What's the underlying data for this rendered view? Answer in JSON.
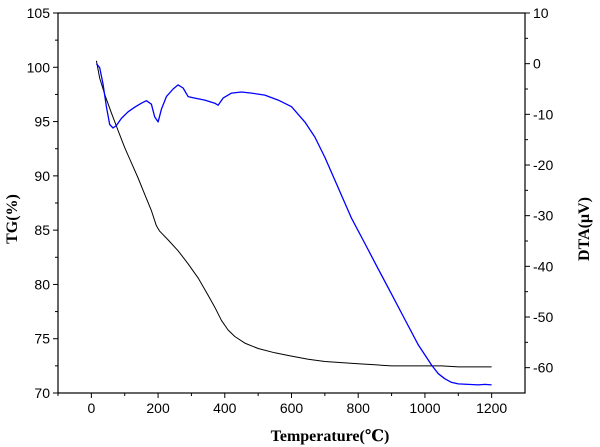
{
  "chart_data": {
    "type": "line",
    "title": "",
    "xlabel": "Temperature(℃)",
    "ylabel_left": "TG(%)",
    "ylabel_right": "DTA(μV)",
    "xlim": [
      -100,
      1300
    ],
    "ylim_left": [
      70,
      105
    ],
    "ylim_right": [
      -65,
      10
    ],
    "x_ticks": [
      0,
      200,
      400,
      600,
      800,
      1000,
      1200
    ],
    "y_left_ticks": [
      70,
      75,
      80,
      85,
      90,
      95,
      100,
      105
    ],
    "y_right_ticks": [
      -60,
      -50,
      -40,
      -30,
      -20,
      -10,
      0,
      10
    ],
    "grid": false,
    "legend": "none",
    "series": [
      {
        "axis": "left",
        "color": "#000000",
        "x": [
          15,
          25,
          40,
          60,
          80,
          100,
          120,
          140,
          160,
          180,
          195,
          205,
          230,
          260,
          290,
          320,
          350,
          370,
          390,
          410,
          430,
          460,
          500,
          550,
          600,
          650,
          700,
          750,
          800,
          850,
          900,
          950,
          1000,
          1050,
          1100,
          1150,
          1200
        ],
        "y": [
          100.6,
          99.0,
          97.5,
          95.8,
          94.2,
          92.6,
          91.2,
          89.8,
          88.3,
          86.8,
          85.4,
          84.9,
          84.1,
          83.1,
          81.9,
          80.6,
          79.0,
          77.9,
          76.7,
          75.8,
          75.2,
          74.6,
          74.1,
          73.7,
          73.4,
          73.1,
          72.9,
          72.8,
          72.7,
          72.6,
          72.5,
          72.5,
          72.5,
          72.5,
          72.4,
          72.4,
          72.4
        ]
      },
      {
        "axis": "right",
        "color": "#0000ff",
        "x": [
          15,
          25,
          35,
          45,
          55,
          65,
          75,
          90,
          110,
          130,
          150,
          165,
          180,
          190,
          200,
          210,
          225,
          245,
          260,
          275,
          290,
          310,
          340,
          370,
          380,
          395,
          420,
          450,
          480,
          520,
          560,
          600,
          640,
          670,
          700,
          740,
          780,
          820,
          860,
          900,
          940,
          980,
          1020,
          1040,
          1060,
          1080,
          1100,
          1130,
          1160,
          1180,
          1200
        ],
        "y": [
          0,
          -0.8,
          -4,
          -8.5,
          -12,
          -12.7,
          -12.2,
          -10.8,
          -9.5,
          -8.6,
          -7.8,
          -7.3,
          -8.0,
          -10.5,
          -11.5,
          -9.0,
          -6.5,
          -5.0,
          -4.2,
          -4.8,
          -6.5,
          -6.8,
          -7.2,
          -7.8,
          -8.2,
          -6.8,
          -5.8,
          -5.6,
          -5.8,
          -6.2,
          -7.2,
          -8.5,
          -11.5,
          -14.5,
          -18.5,
          -24.5,
          -30.5,
          -35.5,
          -40.5,
          -45.5,
          -50.5,
          -55.5,
          -59.5,
          -61.2,
          -62.2,
          -62.9,
          -63.2,
          -63.3,
          -63.4,
          -63.3,
          -63.4
        ]
      }
    ]
  }
}
